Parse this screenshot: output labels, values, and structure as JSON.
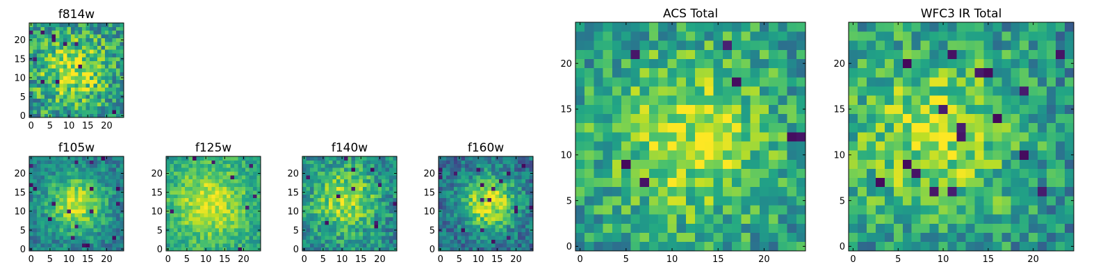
{
  "chart_data": [
    {
      "type": "heatmap",
      "title": "f814w",
      "colormap": "viridis",
      "xlim": [
        0,
        24
      ],
      "ylim": [
        0,
        24
      ],
      "xticks": [
        0,
        5,
        10,
        15,
        20
      ],
      "yticks": [
        0,
        5,
        10,
        15,
        20
      ],
      "xtick_labels": [
        "0",
        "5",
        "10",
        "15",
        "20"
      ],
      "ytick_labels": [
        "0",
        "5",
        "10",
        "15",
        "20"
      ],
      "grid_size": [
        25,
        25
      ],
      "value_range": [
        0,
        1
      ],
      "peak_center": [
        11,
        12
      ],
      "peak_width": 6.5,
      "background_level": 0.52,
      "peak_amplitude": 0.38,
      "noise": 0.26,
      "seed": 814
    },
    {
      "type": "heatmap",
      "title": "f105w",
      "colormap": "viridis",
      "xlim": [
        0,
        24
      ],
      "ylim": [
        0,
        24
      ],
      "xticks": [
        0,
        5,
        10,
        15,
        20
      ],
      "yticks": [
        0,
        5,
        10,
        15,
        20
      ],
      "xtick_labels": [
        "0",
        "5",
        "10",
        "15",
        "20"
      ],
      "ytick_labels": [
        "0",
        "5",
        "10",
        "15",
        "20"
      ],
      "grid_size": [
        25,
        25
      ],
      "value_range": [
        0,
        1
      ],
      "peak_center": [
        12,
        12
      ],
      "peak_width": 5.5,
      "background_level": 0.42,
      "peak_amplitude": 0.5,
      "noise": 0.16,
      "seed": 105
    },
    {
      "type": "heatmap",
      "title": "f125w",
      "colormap": "viridis",
      "xlim": [
        0,
        24
      ],
      "ylim": [
        0,
        24
      ],
      "xticks": [
        0,
        5,
        10,
        15,
        20
      ],
      "yticks": [
        0,
        5,
        10,
        15,
        20
      ],
      "xtick_labels": [
        "0",
        "5",
        "10",
        "15",
        "20"
      ],
      "ytick_labels": [
        "0",
        "5",
        "10",
        "15",
        "20"
      ],
      "grid_size": [
        25,
        25
      ],
      "value_range": [
        0,
        1
      ],
      "peak_center": [
        11,
        12
      ],
      "peak_width": 7.5,
      "background_level": 0.55,
      "peak_amplitude": 0.38,
      "noise": 0.14,
      "seed": 125
    },
    {
      "type": "heatmap",
      "title": "f140w",
      "colormap": "viridis",
      "xlim": [
        0,
        24
      ],
      "ylim": [
        0,
        24
      ],
      "xticks": [
        0,
        5,
        10,
        15,
        20
      ],
      "yticks": [
        0,
        5,
        10,
        15,
        20
      ],
      "xtick_labels": [
        "0",
        "5",
        "10",
        "15",
        "20"
      ],
      "ytick_labels": [
        "0",
        "5",
        "10",
        "15",
        "20"
      ],
      "grid_size": [
        25,
        25
      ],
      "value_range": [
        0,
        1
      ],
      "peak_center": [
        11,
        13
      ],
      "peak_width": 6.5,
      "background_level": 0.45,
      "peak_amplitude": 0.42,
      "noise": 0.2,
      "seed": 140
    },
    {
      "type": "heatmap",
      "title": "f160w",
      "colormap": "viridis",
      "xlim": [
        0,
        24
      ],
      "ylim": [
        0,
        24
      ],
      "xticks": [
        0,
        5,
        10,
        15,
        20
      ],
      "yticks": [
        0,
        5,
        10,
        15,
        20
      ],
      "xtick_labels": [
        "0",
        "5",
        "10",
        "15",
        "20"
      ],
      "ytick_labels": [
        "0",
        "5",
        "10",
        "15",
        "20"
      ],
      "grid_size": [
        25,
        25
      ],
      "value_range": [
        0,
        1
      ],
      "peak_center": [
        13,
        12
      ],
      "peak_width": 5.5,
      "background_level": 0.35,
      "peak_amplitude": 0.58,
      "noise": 0.18,
      "seed": 160
    },
    {
      "type": "heatmap",
      "title": "ACS Total",
      "colormap": "viridis",
      "xlim": [
        0,
        24
      ],
      "ylim": [
        0,
        24
      ],
      "xticks": [
        0,
        5,
        10,
        15,
        20
      ],
      "yticks": [
        0,
        5,
        10,
        15,
        20
      ],
      "xtick_labels": [
        "0",
        "5",
        "10",
        "15",
        "20"
      ],
      "ytick_labels": [
        "0",
        "5",
        "10",
        "15",
        "20"
      ],
      "grid_size": [
        25,
        25
      ],
      "value_range": [
        0,
        1
      ],
      "peak_center": [
        12,
        12
      ],
      "peak_width": 7,
      "background_level": 0.52,
      "peak_amplitude": 0.36,
      "noise": 0.22,
      "seed": 2001
    },
    {
      "type": "heatmap",
      "title": "WFC3 IR Total",
      "colormap": "viridis",
      "xlim": [
        0,
        24
      ],
      "ylim": [
        0,
        24
      ],
      "xticks": [
        0,
        5,
        10,
        15,
        20
      ],
      "yticks": [
        0,
        5,
        10,
        15,
        20
      ],
      "xtick_labels": [
        "0",
        "5",
        "10",
        "15",
        "20"
      ],
      "ytick_labels": [
        "0",
        "5",
        "10",
        "15",
        "20"
      ],
      "grid_size": [
        25,
        25
      ],
      "value_range": [
        0,
        1
      ],
      "peak_center": [
        9,
        12
      ],
      "peak_width": 7,
      "background_level": 0.5,
      "peak_amplitude": 0.36,
      "noise": 0.22,
      "seed": 3001
    }
  ]
}
